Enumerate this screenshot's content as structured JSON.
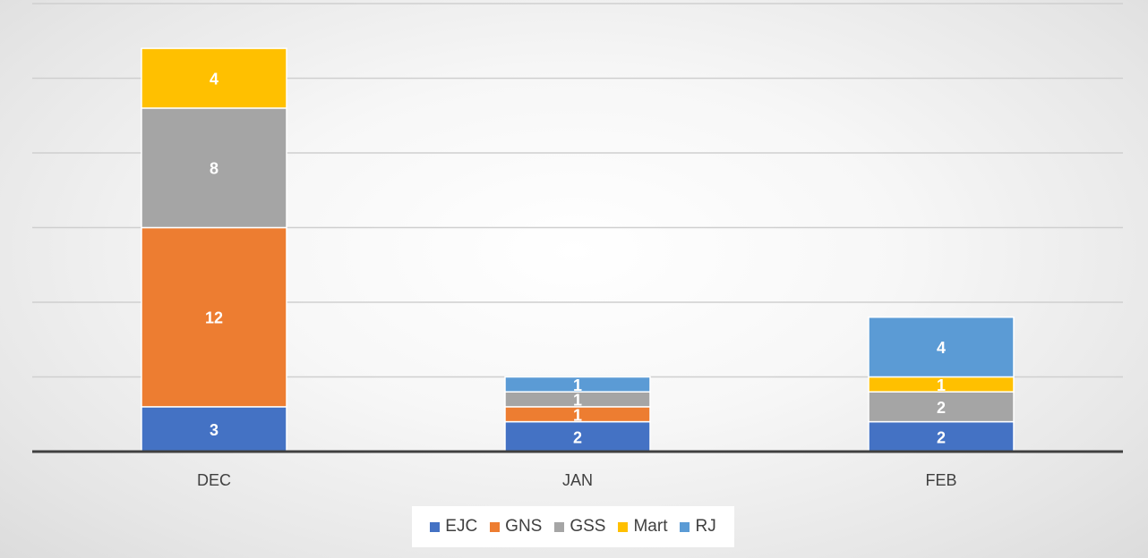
{
  "chart_data": {
    "type": "bar",
    "stacked": true,
    "title": "",
    "xlabel": "",
    "ylabel": "",
    "categories": [
      "DEC",
      "JAN",
      "FEB"
    ],
    "ylim": [
      0,
      30
    ],
    "grid": true,
    "legend_position": "bottom",
    "series": [
      {
        "name": "EJC",
        "color": "#4472C4",
        "values": [
          3,
          2,
          2
        ]
      },
      {
        "name": "GNS",
        "color": "#ED7D31",
        "values": [
          12,
          1,
          0
        ]
      },
      {
        "name": "GSS",
        "color": "#A5A5A5",
        "values": [
          8,
          1,
          2
        ]
      },
      {
        "name": "Mart",
        "color": "#FFC000",
        "values": [
          4,
          0,
          1
        ]
      },
      {
        "name": "RJ",
        "color": "#5B9BD5",
        "values": [
          0,
          1,
          4
        ]
      }
    ]
  }
}
